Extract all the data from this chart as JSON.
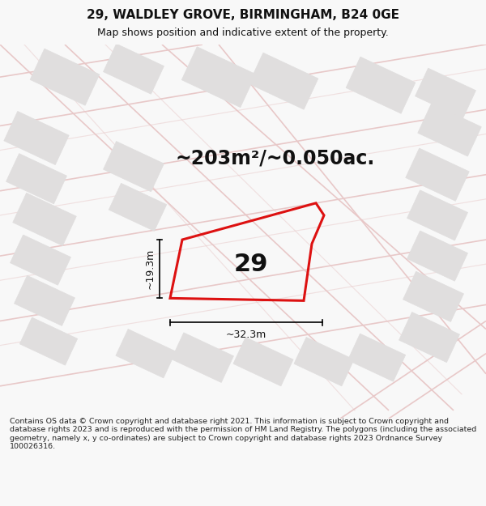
{
  "title_line1": "29, WALDLEY GROVE, BIRMINGHAM, B24 0GE",
  "title_line2": "Map shows position and indicative extent of the property.",
  "area_text": "~203m²/~0.050ac.",
  "plot_number": "29",
  "dim_width": "~32.3m",
  "dim_height": "~19.3m",
  "footer_text": "Contains OS data © Crown copyright and database right 2021. This information is subject to Crown copyright and database rights 2023 and is reproduced with the permission of HM Land Registry. The polygons (including the associated geometry, namely x, y co-ordinates) are subject to Crown copyright and database rights 2023 Ordnance Survey 100026316.",
  "bg_color": "#f8f8f8",
  "map_bg": "#f5f3f3",
  "road_color": "#e8c8c8",
  "road_lw": 1.2,
  "plot_fill": "none",
  "plot_edge": "#dd1111",
  "building_fill": "#e0dede",
  "building_edge": "#e0dede",
  "text_color": "#111111",
  "footer_color": "#222222",
  "title_fontsize": 11,
  "subtitle_fontsize": 9,
  "area_fontsize": 17,
  "plot_num_fontsize": 22,
  "dim_fontsize": 9,
  "footer_fontsize": 6.8
}
